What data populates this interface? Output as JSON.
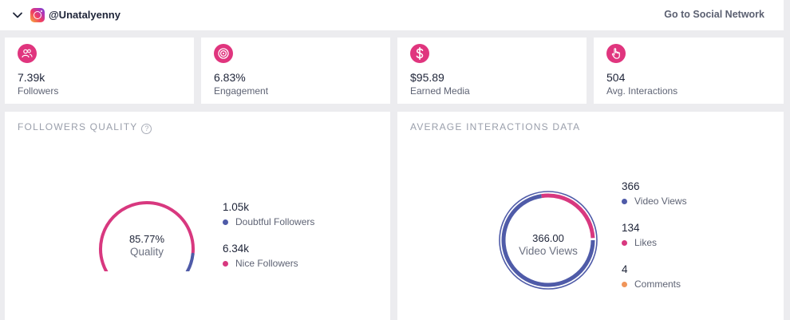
{
  "header": {
    "handle": "@Unatalyenny",
    "go_to_label": "Go to Social Network"
  },
  "stats": [
    {
      "value": "7.39k",
      "label": "Followers",
      "icon": "users-icon"
    },
    {
      "value": "6.83%",
      "label": "Engagement",
      "icon": "target-icon"
    },
    {
      "value": "$95.89",
      "label": "Earned Media",
      "icon": "dollar-icon"
    },
    {
      "value": "504",
      "label": "Avg. Interactions",
      "icon": "hand-pointer-icon"
    }
  ],
  "followers_quality": {
    "title": "FOLLOWERS QUALITY",
    "center_value": "85.77%",
    "center_label": "Quality",
    "items": [
      {
        "value": "1.05k",
        "label": "Doubtful Followers",
        "color": "#4f5ba8"
      },
      {
        "value": "6.34k",
        "label": "Nice Followers",
        "color": "#d8387f"
      }
    ]
  },
  "avg_interactions": {
    "title": "AVERAGE INTERACTIONS DATA",
    "center_value": "366.00",
    "center_label": "Video Views",
    "items": [
      {
        "value": "366",
        "label": "Video Views",
        "color": "#4f5ba8"
      },
      {
        "value": "134",
        "label": "Likes",
        "color": "#d8387f"
      },
      {
        "value": "4",
        "label": "Comments",
        "color": "#f0955a"
      }
    ]
  },
  "colors": {
    "accent_pink": "#e0357e",
    "blue": "#4f5ba8",
    "orange": "#f0955a"
  }
}
